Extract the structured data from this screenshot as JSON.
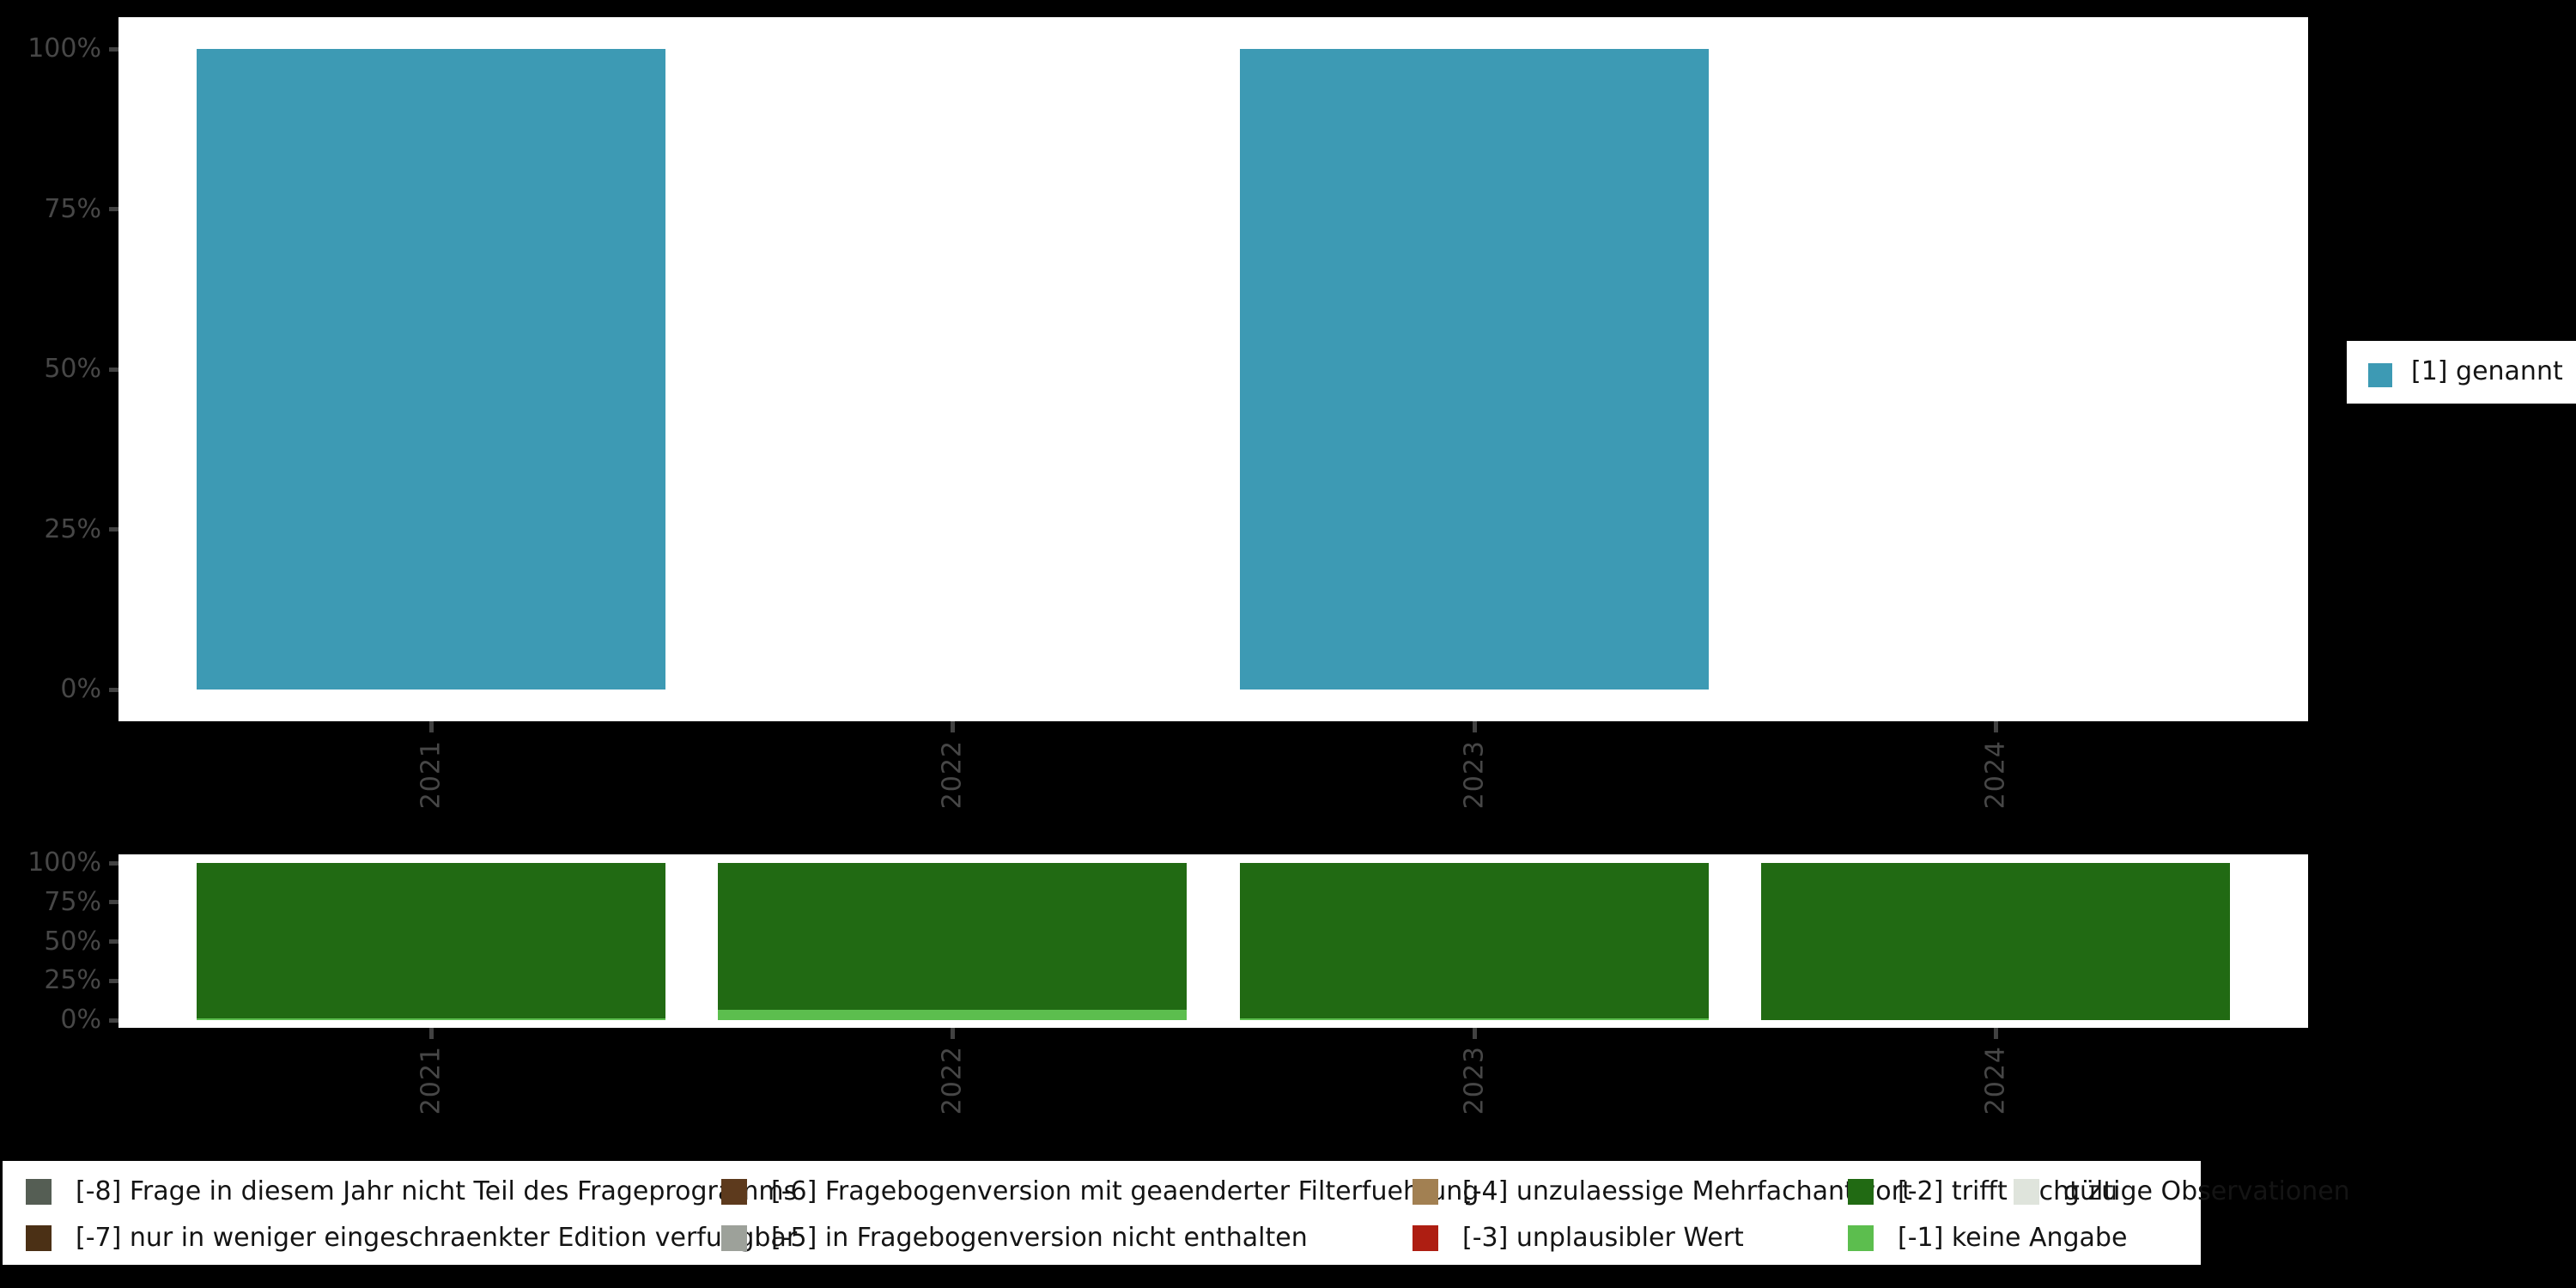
{
  "background": "#000000",
  "panel_background": "#ffffff",
  "axis": {
    "text_color": "#474747",
    "tick_color": "#424242",
    "y_ticks": [
      "100%",
      "75%",
      "50%",
      "25%",
      "0%"
    ],
    "x_labels": [
      "2021",
      "2022",
      "2023",
      "2024"
    ]
  },
  "legend_right": {
    "background": "#ffffff",
    "items": [
      {
        "label": "[1] genannt",
        "color": "#3D9AB4"
      }
    ]
  },
  "legend_bottom": {
    "background": "#ffffff",
    "items": [
      {
        "label": "[-8] Frage in diesem Jahr nicht Teil des Frageprogramms",
        "color": "#555E54"
      },
      {
        "label": "[-7] nur in weniger eingeschraenkter Edition verfuegbar",
        "color": "#4B3015"
      },
      {
        "label": "[-6] Fragebogenversion mit geaenderter Filterfuehrung",
        "color": "#5D3A1D"
      },
      {
        "label": "[-5] in Fragebogenversion nicht enthalten",
        "color": "#9DA19A"
      },
      {
        "label": "[-4] unzulaessige Mehrfachantwort",
        "color": "#A28052"
      },
      {
        "label": "[-3] unplausibler Wert",
        "color": "#AE1E12"
      },
      {
        "label": "[-2] trifft nicht zu",
        "color": "#216A13"
      },
      {
        "label": "[-1] keine Angabe",
        "color": "#5CBE4E"
      },
      {
        "label": "gültige Observationen",
        "color": "#DFE4DC"
      }
    ]
  },
  "chart_data": [
    {
      "type": "bar",
      "title": "",
      "categories": [
        "2021",
        "2022",
        "2023",
        "2024"
      ],
      "series": [
        {
          "name": "[1] genannt",
          "color": "#3D9AB4",
          "values": [
            100,
            0,
            100,
            0
          ]
        }
      ],
      "xlabel": "",
      "ylabel": "",
      "ylim": [
        0,
        100
      ],
      "yticks_percent": [
        0,
        25,
        50,
        75,
        100
      ],
      "grid": false,
      "legend_position": "right",
      "bar_color_legend": "[1] genannt"
    },
    {
      "type": "bar",
      "stacked": true,
      "stack_order": "bottom_to_top",
      "title": "",
      "categories": [
        "2021",
        "2022",
        "2023",
        "2024"
      ],
      "series": [
        {
          "name": "[-1] keine Angabe",
          "color": "#5CBE4E",
          "values": [
            1,
            6.5,
            1,
            0
          ]
        },
        {
          "name": "[-2] trifft nicht zu",
          "color": "#216A13",
          "values": [
            99,
            93.5,
            99,
            100
          ]
        }
      ],
      "xlabel": "",
      "ylabel": "",
      "ylim": [
        0,
        100
      ],
      "yticks_percent": [
        0,
        25,
        50,
        75,
        100
      ],
      "grid": false,
      "legend_position": "bottom"
    }
  ]
}
